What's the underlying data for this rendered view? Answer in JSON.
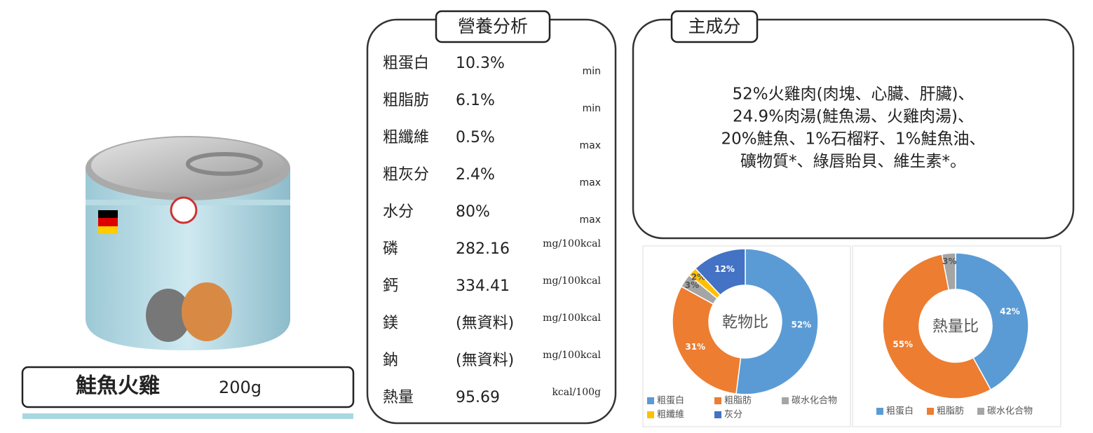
{
  "product": {
    "name": "鮭魚火雞",
    "weight": "200g"
  },
  "nutrition": {
    "title": "營養分析",
    "rows": [
      {
        "label": "粗蛋白",
        "value": "10.3%",
        "unit": "min"
      },
      {
        "label": "粗脂肪",
        "value": "6.1%",
        "unit": "min"
      },
      {
        "label": "粗纖維",
        "value": "0.5%",
        "unit": "max"
      },
      {
        "label": "粗灰分",
        "value": "2.4%",
        "unit": "max"
      },
      {
        "label": "水分",
        "value": "80%",
        "unit": "max"
      },
      {
        "label": "磷",
        "value": "282.16",
        "unit": "mg/100kcal"
      },
      {
        "label": "鈣",
        "value": "334.41",
        "unit": "mg/100kcal"
      },
      {
        "label": "鎂",
        "value": "(無資料)",
        "unit": "mg/100kcal"
      },
      {
        "label": "鈉",
        "value": "(無資料)",
        "unit": "mg/100kcal"
      },
      {
        "label": "熱量",
        "value": "95.69",
        "unit": "kcal/100g"
      }
    ]
  },
  "ingredients": {
    "title": "主成分",
    "lines": [
      "52%火雞肉(肉塊、心臟、肝臟)、",
      "24.9%肉湯(鮭魚湯、火雞肉湯)、",
      "20%鮭魚、1%石榴籽、1%鮭魚油、",
      "礦物質*、綠唇貽貝、維生素*。"
    ]
  },
  "charts": [
    {
      "type": "pie",
      "center_label": "乾物比",
      "categories": [
        "粗蛋白",
        "粗脂肪",
        "碳水化合物",
        "粗纖維",
        "灰分"
      ],
      "values": [
        52,
        31,
        3,
        2,
        12
      ],
      "value_labels": [
        "52%",
        "31%",
        "3%",
        "2%",
        "12%"
      ],
      "colors": [
        "#5b9bd5",
        "#ed7d31",
        "#a5a5a5",
        "#ffc000",
        "#4472c4"
      ]
    },
    {
      "type": "pie",
      "center_label": "熱量比",
      "categories": [
        "粗蛋白",
        "粗脂肪",
        "碳水化合物"
      ],
      "values": [
        42,
        55,
        3
      ],
      "value_labels": [
        "42%",
        "55%",
        "3%"
      ],
      "colors": [
        "#5b9bd5",
        "#ed7d31",
        "#a5a5a5"
      ]
    }
  ]
}
